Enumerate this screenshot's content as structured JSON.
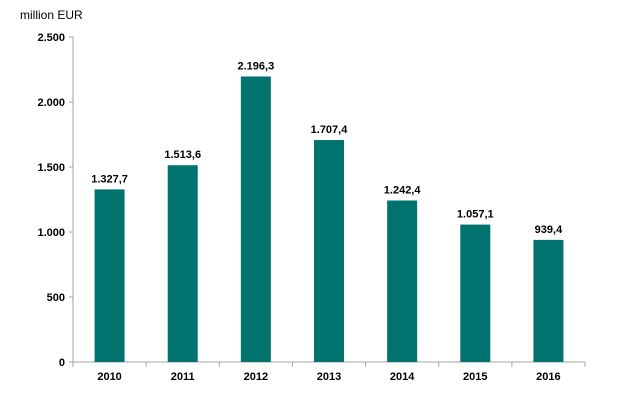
{
  "chart_data": {
    "type": "bar",
    "title": "",
    "unit_label": "million EUR",
    "xlabel": "",
    "ylabel": "",
    "categories": [
      "2010",
      "2011",
      "2012",
      "2013",
      "2014",
      "2015",
      "2016"
    ],
    "values": [
      1327.7,
      1513.6,
      2196.3,
      1707.4,
      1242.4,
      1057.1,
      939.4
    ],
    "data_labels": [
      "1.327,7",
      "1.513,6",
      "2.196,3",
      "1.707,4",
      "1.242,4",
      "1.057,1",
      "939,4"
    ],
    "ylim": [
      0,
      2500
    ],
    "y_ticks": [
      0,
      500,
      1000,
      1500,
      2000,
      2500
    ],
    "y_tick_labels": [
      "0",
      "500",
      "1.000",
      "1.500",
      "2.000",
      "2.500"
    ],
    "grid": false,
    "legend": "none",
    "bar_color": "#00736e"
  }
}
